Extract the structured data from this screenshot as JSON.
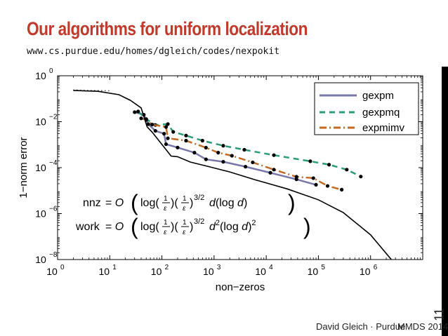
{
  "slide": {
    "title": "Our algorithms for uniform localization",
    "url": "www.cs.purdue.edu/homes/dgleich/codes/nexpokit",
    "footer_author": "David Gleich · Purdue",
    "footer_event": "MMDS 2014",
    "page_number": "11"
  },
  "chart_data": {
    "type": "line",
    "xlabel": "non−zeros",
    "ylabel": "1−norm error",
    "xscale": "log",
    "yscale": "log",
    "xlim": [
      1,
      10000000
    ],
    "ylim": [
      1e-08,
      1
    ],
    "x_ticks": [
      {
        "value": 1,
        "base": "10",
        "exp": "0"
      },
      {
        "value": 10,
        "base": "10",
        "exp": "1"
      },
      {
        "value": 100,
        "base": "10",
        "exp": "2"
      },
      {
        "value": 1000,
        "base": "10",
        "exp": "3"
      },
      {
        "value": 10000,
        "base": "10",
        "exp": "4"
      },
      {
        "value": 100000,
        "base": "10",
        "exp": "5"
      },
      {
        "value": 1000000,
        "base": "10",
        "exp": "6"
      }
    ],
    "y_ticks": [
      {
        "value": 1,
        "base": "10",
        "exp": "0"
      },
      {
        "value": 0.01,
        "base": "10",
        "exp": "−2"
      },
      {
        "value": 0.0001,
        "base": "10",
        "exp": "−4"
      },
      {
        "value": 1e-06,
        "base": "10",
        "exp": "−6"
      },
      {
        "value": 1e-08,
        "base": "10",
        "exp": "−8"
      }
    ],
    "grid": false,
    "legend_position": "top-right",
    "series": [
      {
        "name": "gexpm",
        "color": "#7777aa",
        "dash": "solid",
        "markers": true,
        "points": [
          [
            30,
            0.026
          ],
          [
            45,
            0.02
          ],
          [
            55,
            0.0078
          ],
          [
            75,
            0.004
          ],
          [
            110,
            0.003
          ],
          [
            120,
            0.00105
          ],
          [
            200,
            0.00075
          ],
          [
            420,
            0.00045
          ],
          [
            700,
            0.00023
          ],
          [
            1500,
            0.00018
          ],
          [
            4000,
            0.00011
          ],
          [
            12000,
            6e-05
          ],
          [
            38000,
            3.1e-05
          ],
          [
            90000,
            1.8e-05
          ]
        ]
      },
      {
        "name": "gexpmq",
        "color": "#2a9d77",
        "dash": "8,6",
        "markers": true,
        "points": [
          [
            35,
            0.028
          ],
          [
            50,
            0.013
          ],
          [
            75,
            0.0072
          ],
          [
            130,
            0.0079
          ],
          [
            165,
            0.0036
          ],
          [
            290,
            0.0025
          ],
          [
            600,
            0.0015
          ],
          [
            1500,
            0.0009
          ],
          [
            3800,
            0.0006
          ],
          [
            14000,
            0.00035
          ],
          [
            70000,
            0.00019
          ],
          [
            160000,
            0.000135
          ],
          [
            350000,
            8.2e-05
          ],
          [
            650000,
            4.1e-05
          ]
        ]
      },
      {
        "name": "expmimv",
        "color": "#c36b24",
        "dash": "10,4,2,4",
        "markers": true,
        "points": [
          [
            40,
            0.014
          ],
          [
            50,
            0.012
          ],
          [
            65,
            0.0075
          ],
          [
            120,
            0.0059
          ],
          [
            130,
            0.0019
          ],
          [
            290,
            0.0015
          ],
          [
            700,
            0.00074
          ],
          [
            1200,
            0.00045
          ],
          [
            2200,
            0.00033
          ],
          [
            5500,
            0.00017
          ],
          [
            14000,
            8.2e-05
          ],
          [
            38000,
            4e-05
          ],
          [
            80000,
            3.5e-05
          ],
          [
            150000,
            1.6e-05
          ],
          [
            280000,
            1.1e-05
          ]
        ]
      },
      {
        "color": "#000000",
        "dash": "solid",
        "markers": false,
        "points": [
          [
            2,
            0.23
          ],
          [
            6,
            0.21
          ],
          [
            15,
            0.15
          ],
          [
            25,
            0.085
          ],
          [
            40,
            0.04
          ],
          [
            52,
            0.006
          ],
          [
            65,
            0.0035
          ],
          [
            95,
            0.0012
          ],
          [
            150,
            0.00032
          ],
          [
            200,
            0.0003
          ],
          [
            350,
            0.000175
          ],
          [
            800,
            0.00011
          ],
          [
            2000,
            6.5e-05
          ],
          [
            6000,
            3e-05
          ],
          [
            25000,
            1.2e-05
          ],
          [
            100000,
            4e-06
          ],
          [
            300000,
            1.1e-06
          ],
          [
            1000000,
            1.2e-07
          ],
          [
            2500000,
            1e-08
          ]
        ]
      },
      {
        "color": "#000000",
        "dash": "1,4",
        "markers": false,
        "points": [
          [
            2,
            0.24
          ],
          [
            10,
            0.22
          ]
        ]
      }
    ],
    "annotations": [
      {
        "label": "nnz",
        "power": "3/2",
        "inner": "d(log d)"
      },
      {
        "label": "work",
        "power": "3/2",
        "inner": "d2(log d)2"
      }
    ]
  }
}
